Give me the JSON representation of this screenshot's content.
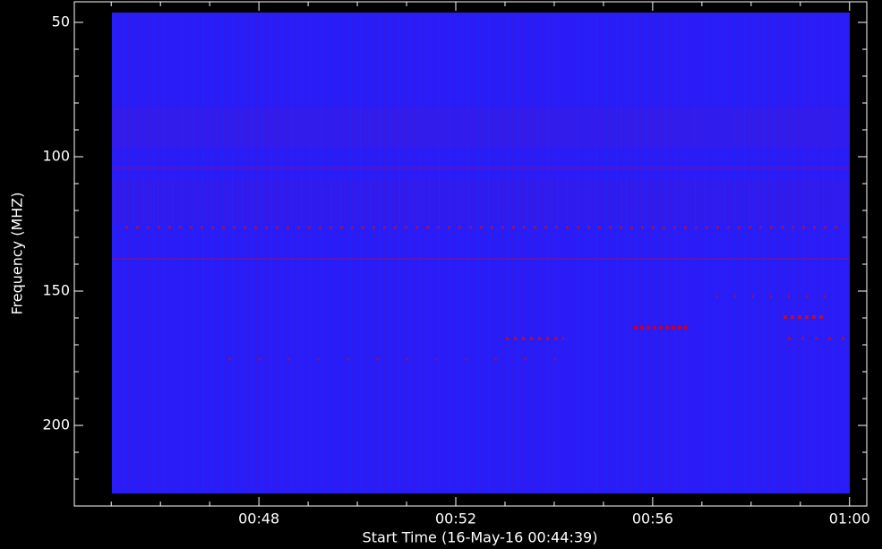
{
  "chart_data": {
    "type": "spectrogram",
    "xlabel": "Start Time (16-May-16 00:44:39)",
    "ylabel": "Frequency (MHZ)",
    "xlim": [
      44.25,
      60.35
    ],
    "xticks": [
      {
        "value": 48,
        "label": "00:48"
      },
      {
        "value": 52,
        "label": "00:52"
      },
      {
        "value": 56,
        "label": "00:56"
      },
      {
        "value": 60,
        "label": "01:00"
      }
    ],
    "xminorticks": [
      45,
      46,
      47,
      49,
      50,
      51,
      53,
      54,
      55,
      57,
      58,
      59
    ],
    "ylim": [
      230,
      42.33
    ],
    "yticks": [
      50,
      100,
      150,
      200
    ],
    "yminorticks": [
      60,
      70,
      80,
      90,
      110,
      120,
      130,
      140,
      160,
      170,
      180,
      190,
      210,
      220
    ],
    "color": "#2a1cf6"
  }
}
